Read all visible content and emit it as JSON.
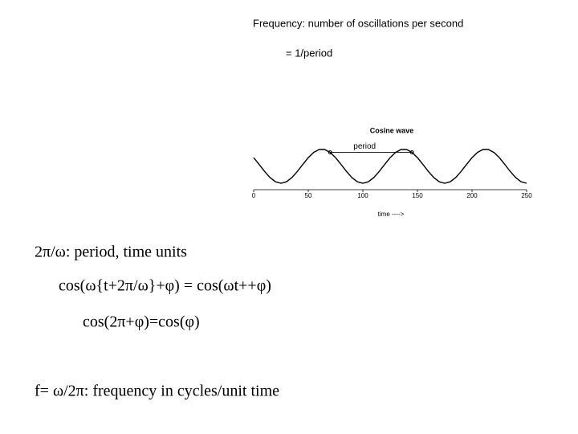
{
  "slide": {
    "heading": "Frequency: number of oscillations per second",
    "subheading": "= 1/period",
    "lines": [
      "2π/ω: period, time units",
      "cos(ω{t+2π/ω}+φ) = cos(ωt++φ)",
      "cos(2π+φ)=cos(φ)",
      "f= ω/2π: frequency in cycles/unit time"
    ]
  },
  "chart_data": {
    "type": "line",
    "title": "Cosine wave",
    "xlabel": "time ---->",
    "color": "#000000",
    "xlim": [
      0,
      250
    ],
    "xticks": [
      0,
      50,
      100,
      150,
      200,
      250
    ],
    "x": [
      0,
      5,
      10,
      15,
      20,
      25,
      30,
      35,
      40,
      45,
      50,
      55,
      60,
      65,
      70,
      75,
      80,
      85,
      90,
      95,
      100,
      105,
      110,
      115,
      120,
      125,
      130,
      135,
      140,
      145,
      150,
      155,
      160,
      165,
      170,
      175,
      180,
      185,
      190,
      195,
      200,
      205,
      210,
      215,
      220,
      225,
      230,
      235,
      240,
      245,
      250
    ],
    "values": [
      0.5,
      0.105,
      -0.309,
      -0.669,
      -0.914,
      -1,
      -0.914,
      -0.669,
      -0.309,
      0.105,
      0.5,
      0.809,
      0.978,
      0.978,
      0.809,
      0.5,
      0.105,
      -0.309,
      -0.669,
      -0.914,
      -1,
      -0.914,
      -0.669,
      -0.309,
      0.105,
      0.5,
      0.809,
      0.978,
      0.978,
      0.809,
      0.5,
      0.105,
      -0.309,
      -0.669,
      -0.914,
      -1,
      -0.914,
      -0.669,
      -0.309,
      0.105,
      0.5,
      0.809,
      0.978,
      0.978,
      0.809,
      0.5,
      0.105,
      -0.309,
      -0.669,
      -0.914,
      -1
    ],
    "annotation": {
      "text": "period",
      "x": [
        70,
        145
      ],
      "values": [
        0.81,
        0.81
      ]
    }
  }
}
